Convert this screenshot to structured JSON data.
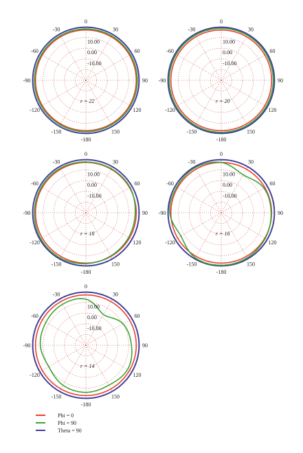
{
  "chart_data": {
    "type": "polar",
    "angle_ticks": [
      {
        "deg": 0,
        "label": "0"
      },
      {
        "deg": 30,
        "label": "30"
      },
      {
        "deg": 60,
        "label": "60"
      },
      {
        "deg": 90,
        "label": "90"
      },
      {
        "deg": 120,
        "label": "120"
      },
      {
        "deg": 150,
        "label": "150"
      },
      {
        "deg": 180,
        "label": "-180"
      },
      {
        "deg": -150,
        "label": "-150"
      },
      {
        "deg": -120,
        "label": "-120"
      },
      {
        "deg": -90,
        "label": "-90"
      },
      {
        "deg": -60,
        "label": "-60"
      },
      {
        "deg": -30,
        "label": "-30"
      }
    ],
    "radial_range": [
      -30,
      20
    ],
    "radial_ticks": [
      10,
      0,
      -10
    ],
    "radial_tick_labels": [
      "10.00",
      "0.00",
      "-10.00"
    ],
    "ring_values": [
      20,
      10,
      0,
      -10,
      -20
    ],
    "legend": [
      {
        "name": "Phi = 0",
        "color": "#e8412c"
      },
      {
        "name": "Phi = 90",
        "color": "#3aa335"
      },
      {
        "name": "Theta = 90",
        "color": "#3b3aa8"
      }
    ],
    "panels": [
      {
        "label": "r = 22",
        "series": [
          {
            "name": "Phi = 0",
            "r": [
              17,
              17,
              17,
              17,
              17,
              17,
              17,
              17,
              17,
              17,
              17,
              17,
              17
            ]
          },
          {
            "name": "Phi = 90",
            "r": [
              18,
              18,
              18,
              18,
              18,
              18,
              18,
              18,
              18,
              18,
              18,
              18,
              18
            ]
          },
          {
            "name": "Theta = 90",
            "r": [
              19.5,
              19.5,
              19.5,
              19.5,
              19.5,
              19.5,
              19.5,
              19.5,
              19.5,
              19.5,
              19.5,
              19.5,
              19.5
            ]
          }
        ]
      },
      {
        "label": "r = 20",
        "series": [
          {
            "name": "Phi = 0",
            "r": [
              17,
              17,
              17,
              17,
              17,
              17,
              17,
              17,
              17,
              17,
              17,
              17,
              17
            ]
          },
          {
            "name": "Phi = 90",
            "r": [
              18.5,
              18.5,
              18.5,
              18.5,
              18.5,
              18.5,
              18.5,
              18.5,
              18.5,
              18.5,
              18.5,
              18.5,
              18.5
            ]
          },
          {
            "name": "Theta = 90",
            "r": [
              19.5,
              19.5,
              19.5,
              19.5,
              19.5,
              19.5,
              19.5,
              19.5,
              19.5,
              19.5,
              19.5,
              19.5,
              19.5
            ]
          }
        ]
      },
      {
        "label": "r = 18",
        "series": [
          {
            "name": "Phi = 0",
            "r": [
              17,
              17,
              17,
              17,
              17,
              17,
              17,
              17,
              17,
              17,
              17,
              17,
              17
            ]
          },
          {
            "name": "Phi = 90",
            "r": [
              17.5,
              17.5,
              17.5,
              16,
              16,
              16.5,
              17.5,
              18.5,
              18.5,
              18,
              18,
              18,
              17.5
            ]
          },
          {
            "name": "Theta = 90",
            "r": [
              19.5,
              19.5,
              19.5,
              19.5,
              19.5,
              19.5,
              19.5,
              19.5,
              19.5,
              19.5,
              19.5,
              19.5,
              19.5
            ]
          }
        ]
      },
      {
        "label": "r = 16",
        "series": [
          {
            "name": "Phi = 0",
            "r": [
              17,
              17,
              17,
              17,
              17,
              17,
              17,
              17,
              17,
              17,
              17,
              17,
              17
            ]
          },
          {
            "name": "Phi = 90",
            "r": [
              17,
              11,
              16,
              16.5,
              17.5,
              18.5,
              19,
              18.5,
              13.5,
              18,
              18,
              18.5,
              17
            ]
          },
          {
            "name": "Theta = 90",
            "r": [
              19.5,
              19.5,
              19.5,
              19.5,
              19.5,
              19.5,
              19.5,
              19.5,
              19.5,
              19.5,
              19.5,
              19.5,
              19.5
            ]
          }
        ]
      },
      {
        "label": "r = 14",
        "series": [
          {
            "name": "Phi = 0",
            "r": [
              17,
              17,
              17,
              17,
              17,
              17,
              17,
              17,
              17,
              17,
              17,
              17,
              17
            ]
          },
          {
            "name": "Phi = 90",
            "r": [
              13,
              3,
              10,
              12.5,
              15,
              13,
              14,
              13,
              10,
              12.5,
              13,
              14,
              13
            ]
          },
          {
            "name": "Theta = 90",
            "r": [
              19.5,
              19.5,
              19.5,
              19.5,
              19.5,
              19.5,
              19.5,
              19.5,
              19.5,
              19.5,
              19.5,
              19.5,
              19.5
            ]
          }
        ]
      }
    ],
    "angles": [
      0,
      30,
      60,
      90,
      120,
      150,
      180,
      210,
      240,
      270,
      300,
      330,
      360
    ]
  }
}
